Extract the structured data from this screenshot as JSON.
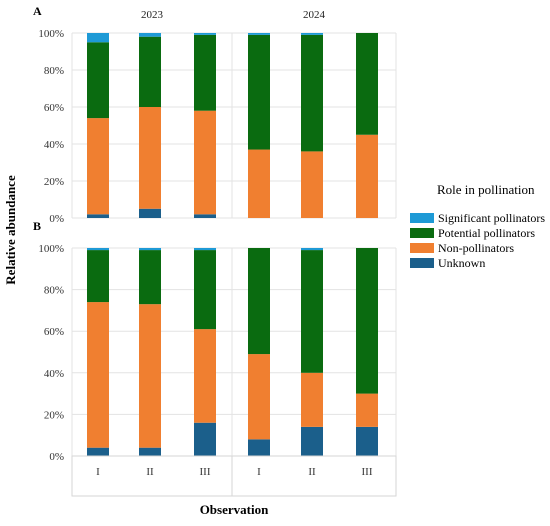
{
  "chart_data": {
    "type": "bar",
    "stacked": true,
    "ylabel": "Relative abundance",
    "xlabel": "Observation",
    "groups": [
      "2023",
      "2024"
    ],
    "categories": [
      "I",
      "II",
      "III",
      "I",
      "II",
      "III"
    ],
    "y_ticks": [
      "0%",
      "20%",
      "40%",
      "60%",
      "80%",
      "100%"
    ],
    "ylim": [
      0,
      100
    ],
    "legend": {
      "title": "Role in pollination",
      "placement": "right",
      "entries": [
        {
          "name": "Significant pollinators",
          "color": "#1e9ad6"
        },
        {
          "name": "Potential pollinators",
          "color": "#0a6b10"
        },
        {
          "name": "Non-pollinators",
          "color": "#f07f30"
        },
        {
          "name": "Unknown",
          "color": "#1b5f8b"
        }
      ]
    },
    "panels": [
      {
        "label": "A",
        "series": [
          {
            "name": "Unknown",
            "values": [
              2,
              5,
              2,
              0,
              0,
              0
            ]
          },
          {
            "name": "Non-pollinators",
            "values": [
              52,
              55,
              56,
              37,
              36,
              45
            ]
          },
          {
            "name": "Potential pollinators",
            "values": [
              41,
              38,
              41,
              62,
              63,
              55
            ]
          },
          {
            "name": "Significant pollinators",
            "values": [
              5,
              2,
              1,
              1,
              1,
              0
            ]
          }
        ]
      },
      {
        "label": "B",
        "series": [
          {
            "name": "Unknown",
            "values": [
              4,
              4,
              16,
              8,
              14,
              14
            ]
          },
          {
            "name": "Non-pollinators",
            "values": [
              70,
              69,
              45,
              41,
              26,
              16
            ]
          },
          {
            "name": "Potential pollinators",
            "values": [
              25,
              26,
              38,
              51,
              59,
              70
            ]
          },
          {
            "name": "Significant pollinators",
            "values": [
              1,
              1,
              1,
              0,
              1,
              0
            ]
          }
        ]
      }
    ]
  }
}
